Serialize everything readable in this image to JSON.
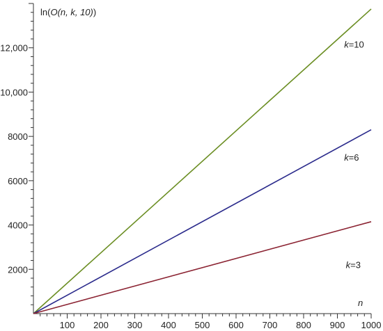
{
  "chart_data": {
    "type": "line",
    "ylabel_parts": [
      "ln(",
      "O(n, k, 10)",
      ")"
    ],
    "xlabel": "n",
    "xlim": [
      0,
      1000
    ],
    "ylim": [
      0,
      14000
    ],
    "x_ticks": [
      100,
      200,
      300,
      400,
      500,
      600,
      700,
      800,
      900,
      1000
    ],
    "x_tick_labels": [
      "100",
      "200",
      "300",
      "400",
      "500",
      "600",
      "700",
      "800",
      "900",
      "1000"
    ],
    "y_ticks": [
      2000,
      4000,
      6000,
      8000,
      10000,
      12000
    ],
    "y_tick_labels": [
      "2000",
      "4000",
      "6000",
      "8000",
      "10,000",
      "12,000"
    ],
    "grid": false,
    "series": [
      {
        "label_var": "k",
        "label_val": "=10",
        "color": "#6b8e23",
        "x": [
          0,
          1000
        ],
        "y": [
          0,
          13750
        ]
      },
      {
        "label_var": "k",
        "label_val": "=6",
        "color": "#2b2b8c",
        "x": [
          0,
          1000
        ],
        "y": [
          0,
          8300
        ]
      },
      {
        "label_var": "k",
        "label_val": "=3",
        "color": "#8b2332",
        "x": [
          0,
          1000
        ],
        "y": [
          0,
          4150
        ]
      }
    ],
    "annotations": [
      {
        "series_index": 0,
        "x": 920,
        "y": 12000
      },
      {
        "series_index": 1,
        "x": 920,
        "y": 6900
      },
      {
        "series_index": 2,
        "x": 925,
        "y": 2050
      }
    ]
  }
}
